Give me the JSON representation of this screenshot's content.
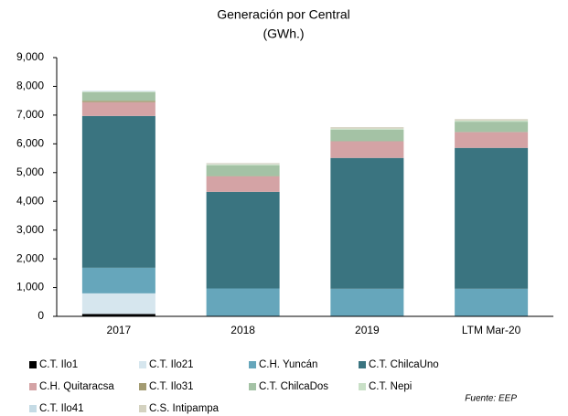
{
  "chart_data": {
    "type": "bar",
    "stacked": true,
    "title": "Generación por Central",
    "subtitle": "(GWh.)",
    "categories": [
      "2017",
      "2018",
      "2019",
      "LTM Mar-20"
    ],
    "series": [
      {
        "name": "C.T. Ilo1",
        "color": "#000000",
        "values": [
          80,
          0,
          0,
          0
        ]
      },
      {
        "name": "C.T. Ilo21",
        "color": "#d6e6ee",
        "values": [
          720,
          10,
          0,
          0
        ]
      },
      {
        "name": "C.H. Yuncán",
        "color": "#66a6bb",
        "values": [
          890,
          960,
          960,
          960
        ]
      },
      {
        "name": "C.T. ChilcaUno",
        "color": "#3a7480",
        "values": [
          5280,
          3360,
          4550,
          4900
        ]
      },
      {
        "name": "C.H. Quitaracsa",
        "color": "#d4a3a5",
        "values": [
          480,
          540,
          580,
          550
        ]
      },
      {
        "name": "C.T. Ilo31",
        "color": "#a39b72",
        "values": [
          50,
          10,
          0,
          0
        ]
      },
      {
        "name": "C.T. ChilcaDos",
        "color": "#a4c2a5",
        "values": [
          300,
          370,
          400,
          360
        ]
      },
      {
        "name": "C.T. Nepi",
        "color": "#c9e0c7",
        "values": [
          20,
          30,
          40,
          40
        ]
      },
      {
        "name": "C.T. Ilo41",
        "color": "#c5dbe5",
        "values": [
          20,
          10,
          0,
          0
        ]
      },
      {
        "name": "C.S. Intipampa",
        "color": "#d4d2c0",
        "values": [
          0,
          40,
          50,
          50
        ]
      }
    ],
    "ylim": [
      0,
      9000
    ],
    "yticks": [
      0,
      {
        "value": 1000,
        "label": "1,000"
      },
      {
        "value": 2000,
        "label": "2,000"
      },
      {
        "value": 3000,
        "label": "3,000"
      },
      {
        "value": 4000,
        "label": "4,000"
      },
      {
        "value": 5000,
        "label": "5,000"
      },
      {
        "value": 6000,
        "label": "6,000"
      },
      {
        "value": 7000,
        "label": "7,000"
      },
      {
        "value": 8000,
        "label": "8,000"
      },
      {
        "value": 9000,
        "label": "9,000"
      }
    ],
    "source": "Fuente: EEP"
  }
}
